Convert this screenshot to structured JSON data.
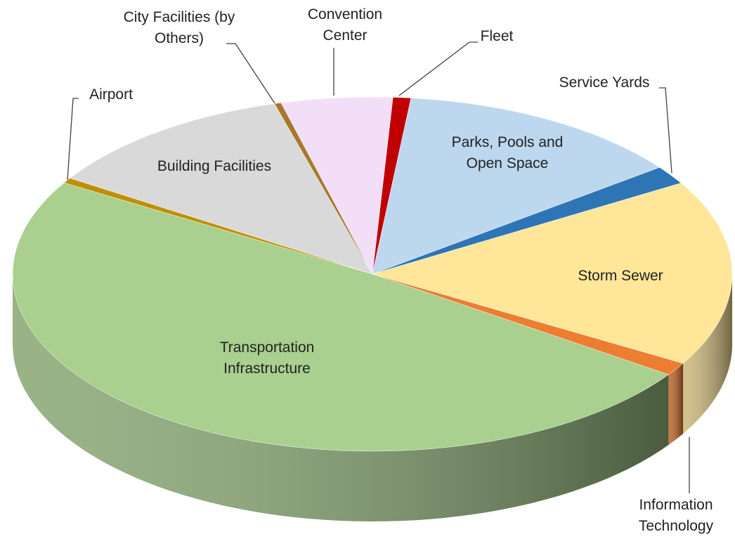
{
  "chart_data": {
    "type": "pie3d",
    "categories": [
      "Airport",
      "Building Facilities",
      "City Facilities (by Others)",
      "Convention Center",
      "Fleet",
      "Parks, Pools and Open Space",
      "Service Yards",
      "Storm Sewer",
      "Information Technology",
      "Transportation Infrastructure"
    ],
    "values": [
      0.5,
      11.5,
      0.3,
      5,
      0.8,
      13,
      1.7,
      17,
      1.2,
      49
    ],
    "colors": [
      "#bf8f00",
      "#d9d9d9",
      "#a8782a",
      "#f3def8",
      "#c00000",
      "#bdd7ee",
      "#2e75b6",
      "#ffe699",
      "#ed7d31",
      "#a9d08e"
    ]
  }
}
